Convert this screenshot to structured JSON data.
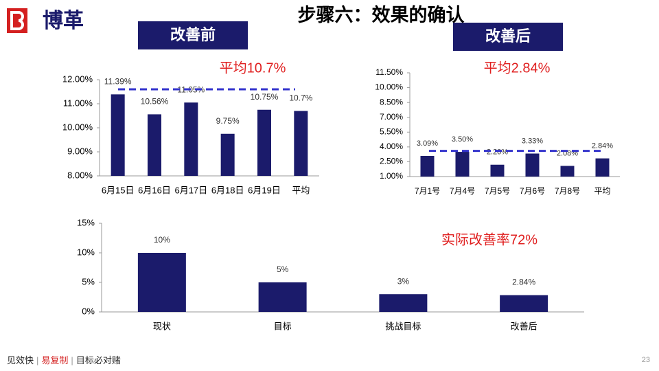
{
  "header": {
    "logo": "博革",
    "title": "步骤六：效果的确认",
    "before_label": "改善前",
    "after_label": "改善后"
  },
  "chart_data": [
    {
      "type": "bar",
      "categories": [
        "6月15日",
        "6月16日",
        "6月17日",
        "6月18日",
        "6月19日",
        "平均"
      ],
      "values": [
        11.39,
        10.56,
        11.05,
        9.75,
        10.75,
        10.7
      ],
      "value_labels": [
        "11.39%",
        "10.56%",
        "11.05%",
        "9.75%",
        "10.75%",
        "10.7%"
      ],
      "color": "#1b1b6b",
      "ylim": [
        8,
        12
      ],
      "yticks": [
        {
          "value": 8,
          "label": "8.00%"
        },
        {
          "value": 9,
          "label": "9.00%"
        },
        {
          "value": 10,
          "label": "10.00%"
        },
        {
          "value": 11,
          "label": "11.00%"
        },
        {
          "value": 12,
          "label": "12.00%"
        }
      ],
      "reference_line": 11.6,
      "annotation": "平均10.7%"
    },
    {
      "type": "bar",
      "categories": [
        "7月1号",
        "7月4号",
        "7月5号",
        "7月6号",
        "7月8号",
        "平均"
      ],
      "values": [
        3.09,
        3.5,
        2.2,
        3.33,
        2.08,
        2.84
      ],
      "value_labels": [
        "3.09%",
        "3.50%",
        "2.20%",
        "3.33%",
        "2.08%",
        "2.84%"
      ],
      "color": "#1b1b6b",
      "ylim": [
        1,
        11.5
      ],
      "yticks": [
        {
          "value": 1,
          "label": "1.00%"
        },
        {
          "value": 2.5,
          "label": "2.50%"
        },
        {
          "value": 4,
          "label": "4.00%"
        },
        {
          "value": 5.5,
          "label": "5.50%"
        },
        {
          "value": 7,
          "label": "7.00%"
        },
        {
          "value": 8.5,
          "label": "8.50%"
        },
        {
          "value": 10,
          "label": "10.00%"
        },
        {
          "value": 11.5,
          "label": "11.50%"
        }
      ],
      "reference_line": 3.6,
      "annotation": "平均2.84%"
    },
    {
      "type": "bar",
      "categories": [
        "现状",
        "目标",
        "挑战目标",
        "改善后"
      ],
      "values": [
        10,
        5,
        3,
        2.84
      ],
      "value_labels": [
        "10%",
        "5%",
        "3%",
        "2.84%"
      ],
      "color": "#1b1b6b",
      "ylim": [
        0,
        15
      ],
      "yticks": [
        {
          "value": 0,
          "label": "0%"
        },
        {
          "value": 5,
          "label": "5%"
        },
        {
          "value": 10,
          "label": "10%"
        },
        {
          "value": 15,
          "label": "15%"
        }
      ],
      "annotation": "实际改善率72%"
    }
  ],
  "footer": {
    "slogan_1": "见效快",
    "slogan_2": "易复制",
    "slogan_3": "目标必对赌",
    "page_number": "23"
  }
}
